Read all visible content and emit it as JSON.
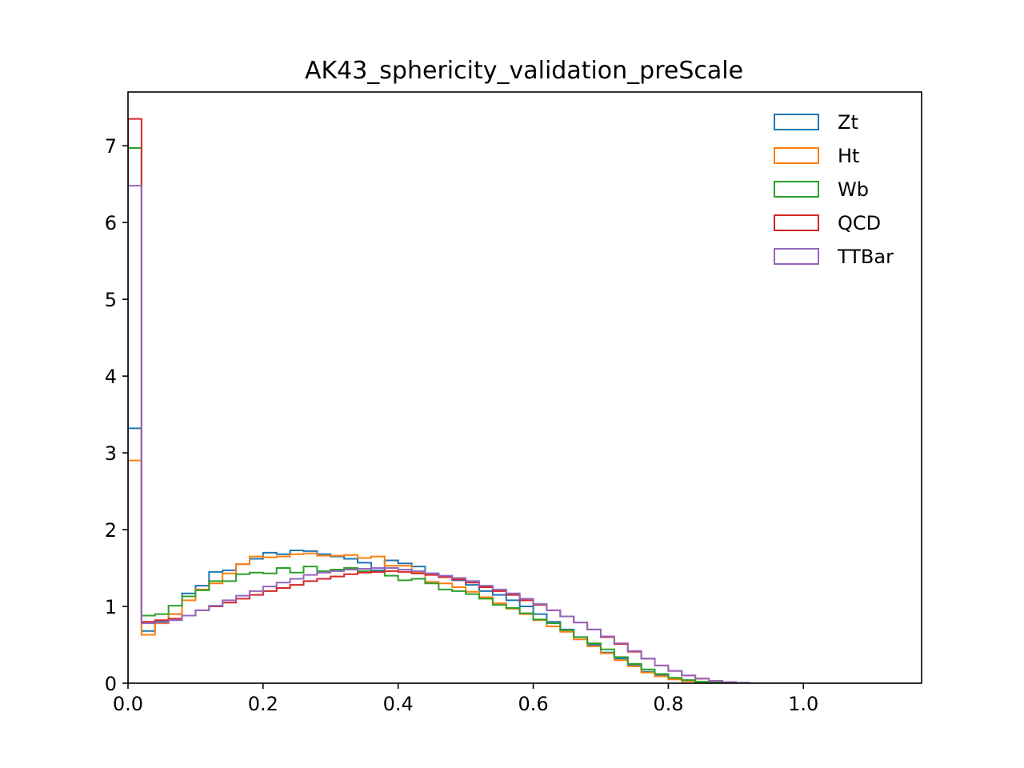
{
  "chart_data": {
    "type": "histogram",
    "title": "AK43_sphericity_validation_preScale",
    "xlabel": "",
    "ylabel": "",
    "xlim": [
      0.0,
      1.175
    ],
    "ylim": [
      0,
      7.7
    ],
    "xticks": [
      0.0,
      0.2,
      0.4,
      0.6,
      0.8,
      1.0
    ],
    "xtick_labels": [
      "0.0",
      "0.2",
      "0.4",
      "0.6",
      "0.8",
      "1.0"
    ],
    "yticks": [
      0,
      1,
      2,
      3,
      4,
      5,
      6,
      7
    ],
    "ytick_labels": [
      "0",
      "1",
      "2",
      "3",
      "4",
      "5",
      "6",
      "7"
    ],
    "bin_start": 0.0,
    "bin_width": 0.02,
    "grid": false,
    "legend_position": "top-right",
    "histtype": "step",
    "series": [
      {
        "name": "Zt",
        "color": "#1f77b4",
        "values": [
          3.32,
          0.68,
          0.8,
          0.9,
          1.17,
          1.27,
          1.45,
          1.47,
          1.55,
          1.62,
          1.7,
          1.68,
          1.73,
          1.72,
          1.68,
          1.65,
          1.62,
          1.57,
          1.47,
          1.6,
          1.56,
          1.52,
          1.43,
          1.38,
          1.34,
          1.28,
          1.2,
          1.15,
          1.08,
          1.0,
          0.9,
          0.8,
          0.7,
          0.6,
          0.5,
          0.4,
          0.32,
          0.23,
          0.15,
          0.1,
          0.06,
          0.03,
          0.015,
          0.005,
          0.0,
          0.0,
          0.0,
          0.0,
          0.0,
          0.0
        ]
      },
      {
        "name": "Ht",
        "color": "#ff7f0e",
        "values": [
          2.9,
          0.63,
          0.78,
          0.9,
          1.08,
          1.22,
          1.3,
          1.43,
          1.55,
          1.65,
          1.64,
          1.65,
          1.68,
          1.69,
          1.66,
          1.66,
          1.67,
          1.63,
          1.65,
          1.53,
          1.53,
          1.44,
          1.32,
          1.3,
          1.25,
          1.19,
          1.12,
          1.04,
          0.97,
          0.9,
          0.82,
          0.74,
          0.67,
          0.57,
          0.48,
          0.39,
          0.3,
          0.22,
          0.14,
          0.09,
          0.05,
          0.025,
          0.01,
          0.003,
          0.0,
          0.0,
          0.0,
          0.0,
          0.0,
          0.0
        ]
      },
      {
        "name": "Wb",
        "color": "#2ca02c",
        "values": [
          6.97,
          0.88,
          0.9,
          1.01,
          1.13,
          1.21,
          1.33,
          1.33,
          1.42,
          1.44,
          1.43,
          1.5,
          1.44,
          1.52,
          1.46,
          1.48,
          1.5,
          1.46,
          1.45,
          1.4,
          1.34,
          1.36,
          1.3,
          1.22,
          1.2,
          1.16,
          1.1,
          1.02,
          0.98,
          0.91,
          0.83,
          0.78,
          0.69,
          0.6,
          0.52,
          0.44,
          0.34,
          0.25,
          0.18,
          0.12,
          0.07,
          0.04,
          0.02,
          0.01,
          0.003,
          0.0,
          0.0,
          0.0,
          0.0,
          0.0
        ]
      },
      {
        "name": "QCD",
        "color": "#d62728",
        "values": [
          7.35,
          0.8,
          0.82,
          0.84,
          0.88,
          0.95,
          1.0,
          1.05,
          1.1,
          1.15,
          1.2,
          1.24,
          1.28,
          1.33,
          1.36,
          1.39,
          1.42,
          1.44,
          1.45,
          1.46,
          1.45,
          1.43,
          1.41,
          1.38,
          1.35,
          1.31,
          1.25,
          1.2,
          1.15,
          1.08,
          1.02,
          0.95,
          0.87,
          0.79,
          0.7,
          0.6,
          0.51,
          0.41,
          0.32,
          0.23,
          0.16,
          0.1,
          0.06,
          0.03,
          0.015,
          0.005,
          0.0,
          0.0,
          0.0,
          0.0
        ]
      },
      {
        "name": "TTBar",
        "color": "#9467bd",
        "values": [
          6.48,
          0.78,
          0.79,
          0.82,
          0.88,
          0.95,
          1.01,
          1.08,
          1.14,
          1.2,
          1.26,
          1.31,
          1.36,
          1.41,
          1.44,
          1.46,
          1.48,
          1.49,
          1.5,
          1.5,
          1.48,
          1.46,
          1.43,
          1.4,
          1.37,
          1.33,
          1.27,
          1.22,
          1.17,
          1.1,
          1.03,
          0.95,
          0.87,
          0.79,
          0.7,
          0.61,
          0.52,
          0.42,
          0.32,
          0.23,
          0.16,
          0.1,
          0.06,
          0.03,
          0.015,
          0.006,
          0.0,
          0.0,
          0.0,
          0.0
        ]
      }
    ]
  }
}
